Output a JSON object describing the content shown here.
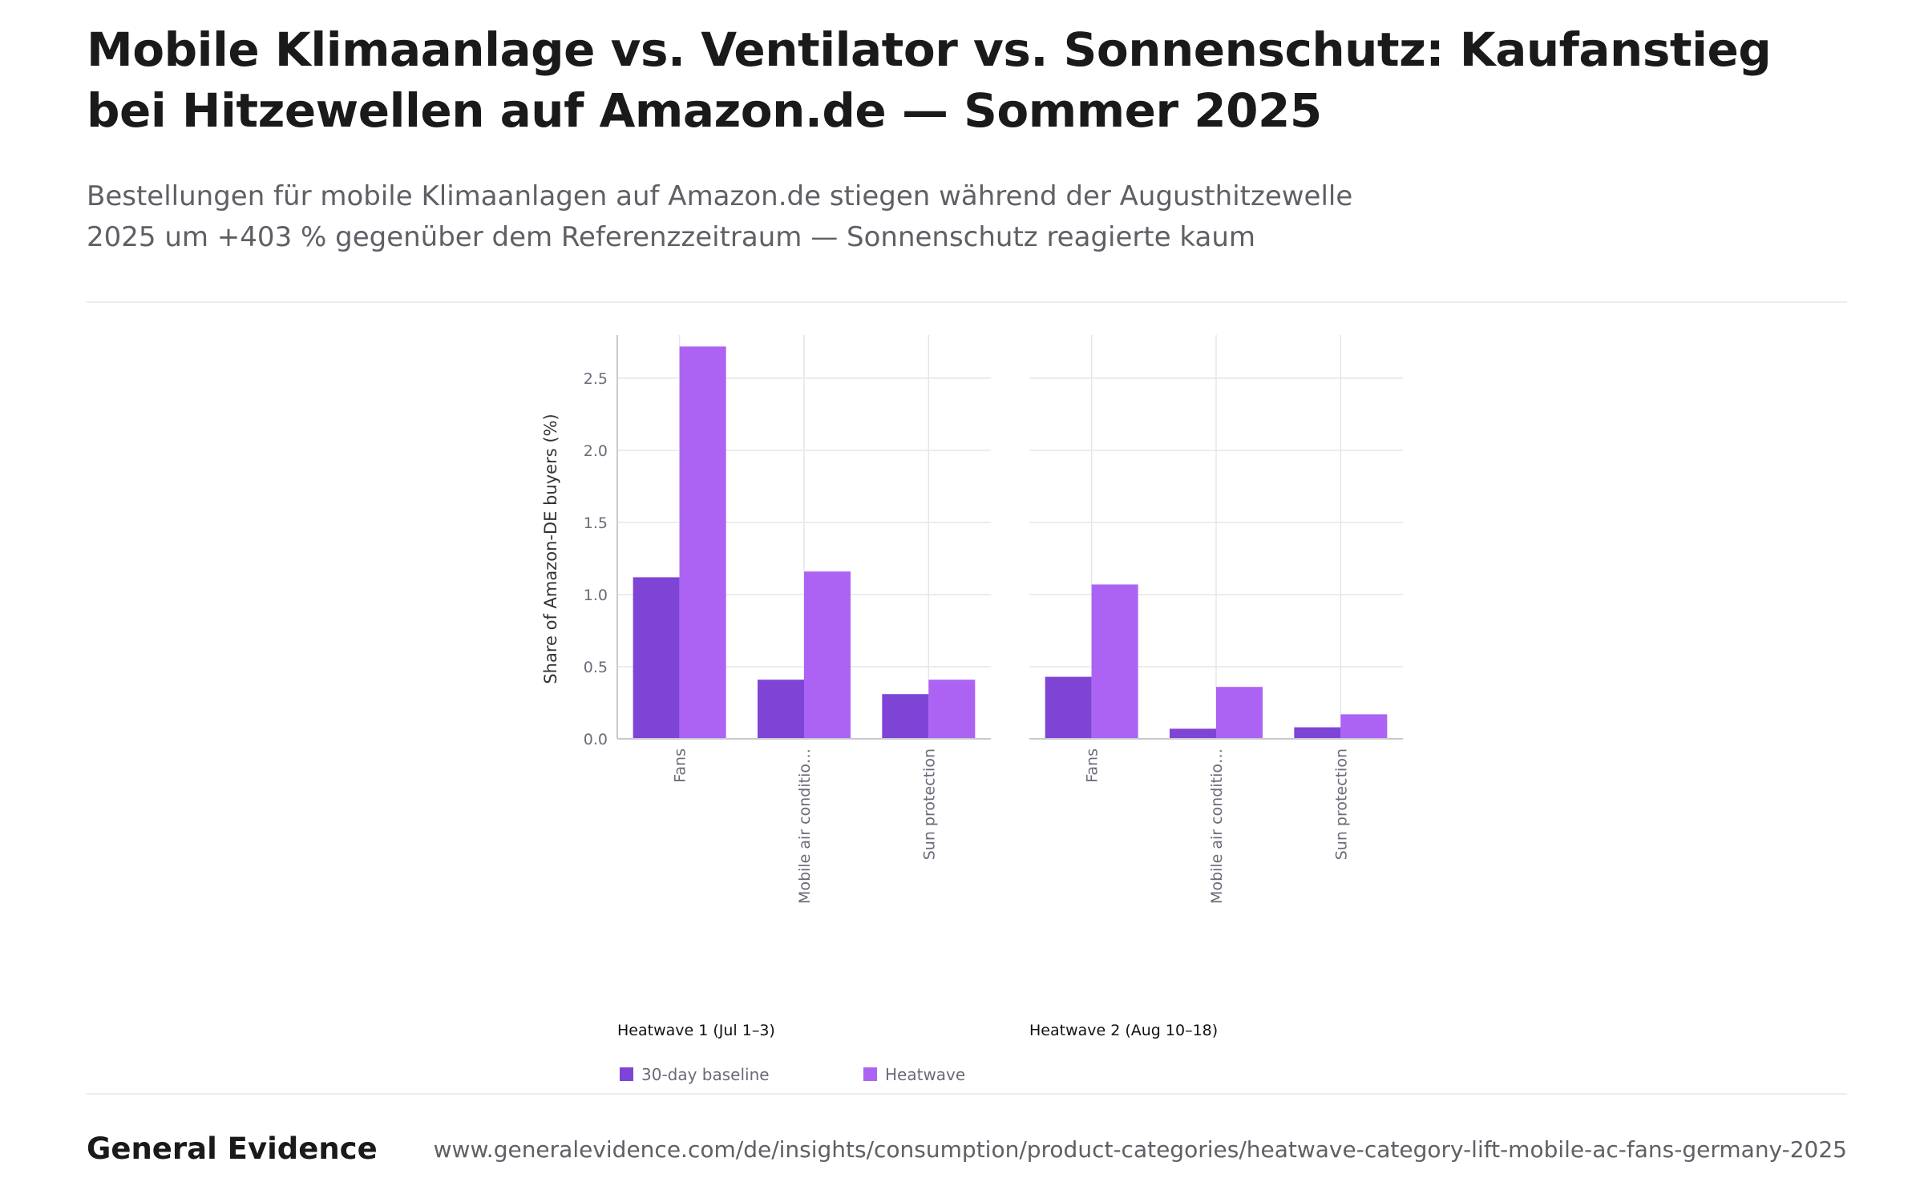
{
  "header": {
    "title": "Mobile Klimaanlage vs. Ventilator vs. Sonnenschutz: Kaufanstieg bei Hitzewellen auf Amazon.de — Sommer 2025",
    "subtitle": "Bestellungen für mobile Klimaanlagen auf Amazon.de stiegen während der Augusthitzewelle 2025 um +403 % gegenüber dem Referenzzeitraum — Sonnenschutz reagierte kaum"
  },
  "footer": {
    "brand": "General Evidence",
    "url": "www.generalevidence.com/de/insights/consumption/product-categories/heatwave-category-lift-mobile-ac-fans-germany-2025"
  },
  "chart_data": {
    "type": "bar",
    "ylabel": "Share of Amazon-DE buyers (%)",
    "ylim": [
      0,
      2.8
    ],
    "yticks": [
      0.0,
      0.5,
      1.0,
      1.5,
      2.0,
      2.5
    ],
    "ytick_labels": [
      "0.0",
      "0.5",
      "1.0",
      "1.5",
      "2.0",
      "2.5"
    ],
    "grid": true,
    "legend": {
      "placement": "bottom-left",
      "entries": [
        {
          "name": "30-day baseline",
          "color": "#7e44d6"
        },
        {
          "name": "Heatwave",
          "color": "#ac63f3"
        }
      ]
    },
    "panels": [
      {
        "title": "Heatwave 1 (Jul 1–3)",
        "categories": [
          "Fans",
          "Mobile air conditio…",
          "Sun protection"
        ],
        "series": [
          {
            "name": "30-day baseline",
            "values": [
              1.12,
              0.41,
              0.31
            ]
          },
          {
            "name": "Heatwave",
            "values": [
              2.72,
              1.16,
              0.41
            ]
          }
        ]
      },
      {
        "title": "Heatwave 2 (Aug 10–18)",
        "categories": [
          "Fans",
          "Mobile air conditio…",
          "Sun protection"
        ],
        "series": [
          {
            "name": "30-day baseline",
            "values": [
              0.43,
              0.07,
              0.08
            ]
          },
          {
            "name": "Heatwave",
            "values": [
              1.07,
              0.36,
              0.17
            ]
          }
        ]
      }
    ]
  }
}
